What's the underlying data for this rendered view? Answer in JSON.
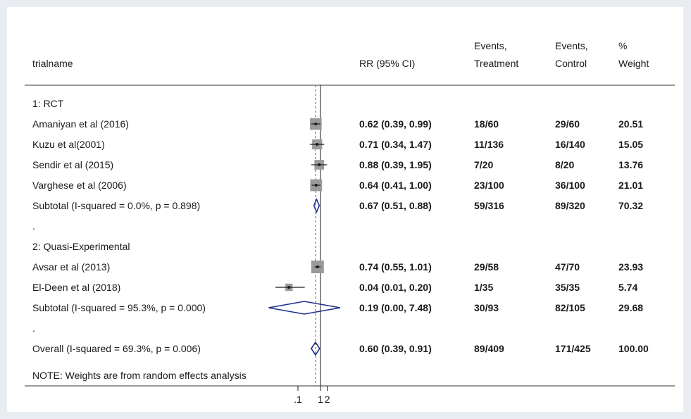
{
  "chart_data": {
    "type": "forest",
    "columns": {
      "trialname": "trialname",
      "rr": "RR (95% CI)",
      "treatment": [
        "Events,",
        "Treatment"
      ],
      "control": [
        "Events,",
        "Control"
      ],
      "weight": [
        "%",
        "Weight"
      ]
    },
    "rows": [
      {
        "kind": "group",
        "label": "1: RCT"
      },
      {
        "kind": "study",
        "label": "Amaniyan et al (2016)",
        "rr": 0.62,
        "lo": 0.39,
        "hi": 0.99,
        "rr_text": "0.62 (0.39, 0.99)",
        "treatment": "18/60",
        "control": "29/60",
        "weight": "20.51"
      },
      {
        "kind": "study",
        "label": "Kuzu et al(2001)",
        "rr": 0.71,
        "lo": 0.34,
        "hi": 1.47,
        "rr_text": "0.71 (0.34, 1.47)",
        "treatment": "11/136",
        "control": "16/140",
        "weight": "15.05"
      },
      {
        "kind": "study",
        "label": "Sendir et al (2015)",
        "rr": 0.88,
        "lo": 0.39,
        "hi": 1.95,
        "rr_text": "0.88 (0.39, 1.95)",
        "treatment": "7/20",
        "control": "8/20",
        "weight": "13.76"
      },
      {
        "kind": "study",
        "label": "Varghese et al (2006)",
        "rr": 0.64,
        "lo": 0.41,
        "hi": 1.0,
        "rr_text": "0.64 (0.41, 1.00)",
        "treatment": "23/100",
        "control": "36/100",
        "weight": "21.01"
      },
      {
        "kind": "subtotal",
        "label": "Subtotal  (I-squared = 0.0%, p = 0.898)",
        "rr": 0.67,
        "lo": 0.51,
        "hi": 0.88,
        "rr_text": "0.67 (0.51, 0.88)",
        "treatment": "59/316",
        "control": "89/320",
        "weight": "70.32"
      },
      {
        "kind": "dot",
        "label": "."
      },
      {
        "kind": "group",
        "label": "2: Quasi-Experimental"
      },
      {
        "kind": "study",
        "label": "Avsar et al (2013)",
        "rr": 0.74,
        "lo": 0.55,
        "hi": 1.01,
        "rr_text": "0.74 (0.55, 1.01)",
        "treatment": "29/58",
        "control": "47/70",
        "weight": "23.93"
      },
      {
        "kind": "study",
        "label": "El-Deen et al (2018)",
        "rr": 0.04,
        "lo": 0.01,
        "hi": 0.2,
        "rr_text": "0.04 (0.01, 0.20)",
        "treatment": "1/35",
        "control": "35/35",
        "weight": "5.74"
      },
      {
        "kind": "subtotal",
        "label": "Subtotal  (I-squared = 95.3%, p = 0.000)",
        "rr": 0.19,
        "lo": 0.0,
        "hi": 7.48,
        "rr_text": "0.19 (0.00, 7.48)",
        "treatment": "30/93",
        "control": "82/105",
        "weight": "29.68"
      },
      {
        "kind": "dot",
        "label": "."
      },
      {
        "kind": "overall",
        "label": "Overall  (I-squared = 69.3%, p = 0.006)",
        "rr": 0.6,
        "lo": 0.39,
        "hi": 0.91,
        "rr_text": "0.60 (0.39, 0.91)",
        "treatment": "89/409",
        "control": "171/425",
        "weight": "100.00"
      }
    ],
    "note": "NOTE: Weights are from random effects analysis",
    "x_scale": "log",
    "x_ticks": [
      {
        "value": 0.1,
        "label": ".1"
      },
      {
        "value": 1,
        "label": "1"
      },
      {
        "value": 2,
        "label": "2"
      }
    ],
    "null_line": 1,
    "colors": {
      "marker": "#1a1a1a",
      "box": "#9a9a9a",
      "diamond": "#1c2f8c",
      "overall_line": "#c0392b"
    }
  }
}
